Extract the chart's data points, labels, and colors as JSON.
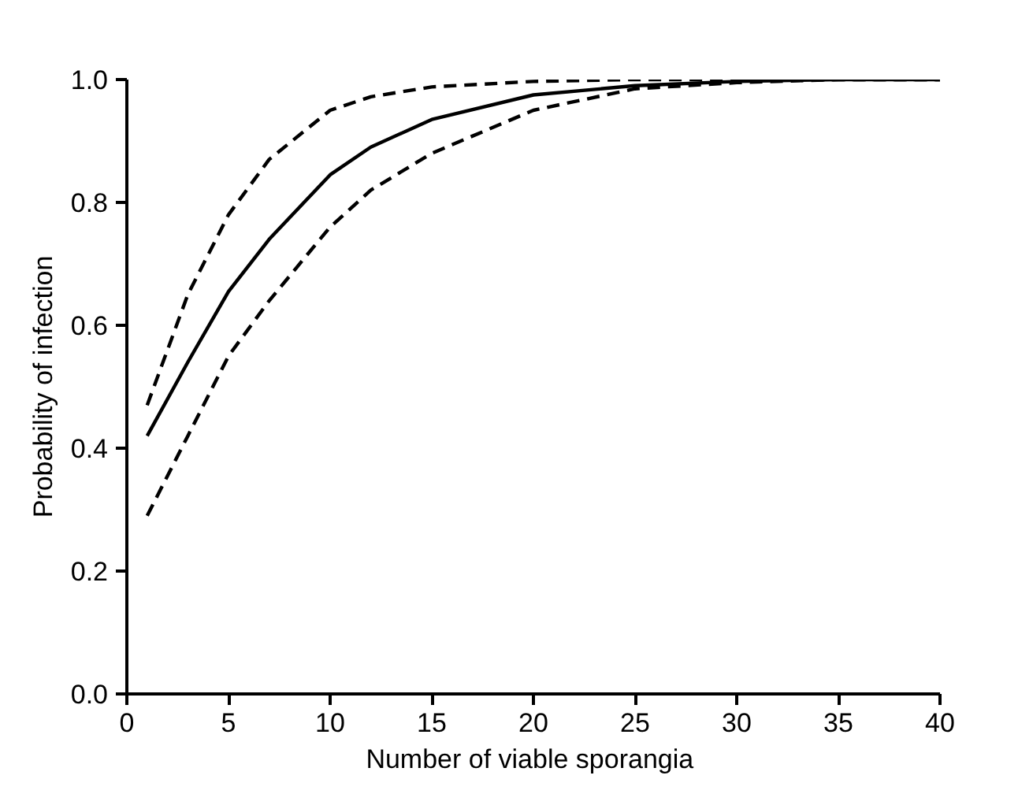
{
  "chart_data": {
    "type": "line",
    "xlabel": "Number  of viable sporangia",
    "ylabel": "Probability of infection",
    "x": [
      1,
      3,
      5,
      7,
      10,
      12,
      15,
      20,
      25,
      30,
      35,
      40
    ],
    "series": [
      {
        "color": "#000000",
        "line_style": "solid",
        "values": [
          0.42,
          0.54,
          0.655,
          0.74,
          0.845,
          0.89,
          0.935,
          0.975,
          0.99,
          0.997,
          1.0,
          1.0
        ]
      },
      {
        "color": "#000000",
        "line_style": "dashed",
        "values": [
          0.47,
          0.65,
          0.78,
          0.87,
          0.95,
          0.972,
          0.988,
          0.997,
          1.0,
          1.0,
          1.0,
          1.0
        ]
      },
      {
        "color": "#000000",
        "line_style": "dashed",
        "values": [
          0.29,
          0.42,
          0.55,
          0.64,
          0.76,
          0.82,
          0.88,
          0.95,
          0.985,
          0.995,
          1.0,
          1.0
        ]
      }
    ],
    "xlim": [
      0,
      40
    ],
    "ylim": [
      0,
      1.0
    ],
    "xticks": [
      0,
      5,
      10,
      15,
      20,
      25,
      30,
      35,
      40
    ],
    "yticks": [
      {
        "value": 0,
        "label": "0.0"
      },
      {
        "value": 0.2,
        "label": "0.2"
      },
      {
        "value": 0.4,
        "label": "0.4"
      },
      {
        "value": 0.6,
        "label": "0.6"
      },
      {
        "value": 0.8,
        "label": "0.8"
      },
      {
        "value": 1.0,
        "label": "1.0"
      }
    ],
    "grid": false,
    "marker": "none"
  }
}
